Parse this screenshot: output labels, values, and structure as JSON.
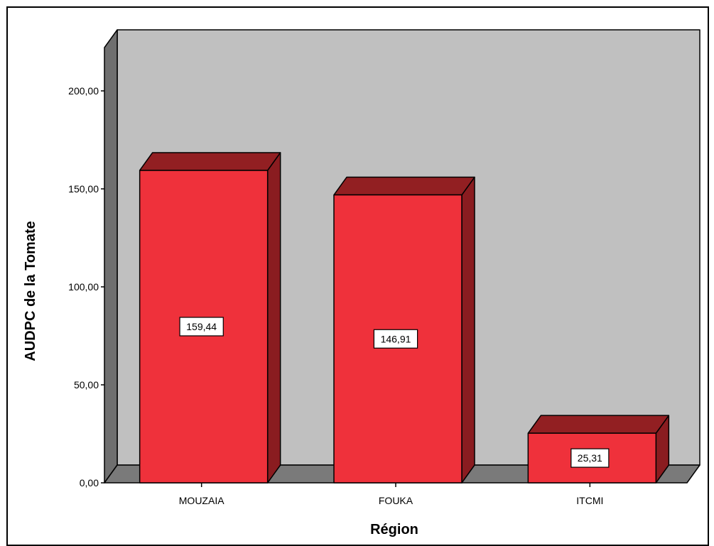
{
  "chart_data": {
    "type": "bar",
    "categories": [
      "MOUZAIA",
      "FOUKA",
      "ITCMI"
    ],
    "values": [
      159.44,
      146.91,
      25.31
    ],
    "data_labels": [
      "159,44",
      "146,91",
      "25,31"
    ],
    "xlabel": "Région",
    "ylabel": "AUDPC de la Tomate",
    "ylim": [
      0,
      200
    ],
    "yticks": [
      0,
      50,
      100,
      150,
      200
    ],
    "ytick_labels": [
      "0,00",
      "50,00",
      "100,00",
      "150,00",
      "200,00"
    ],
    "style": "3d",
    "colors": {
      "bar_front": "#ef313b",
      "bar_top": "#921f22",
      "bar_side": "#8a1c20",
      "back_wall": "#c0c0c0",
      "side_wall": "#6f6f6f",
      "floor": "#7a7a7a"
    }
  }
}
